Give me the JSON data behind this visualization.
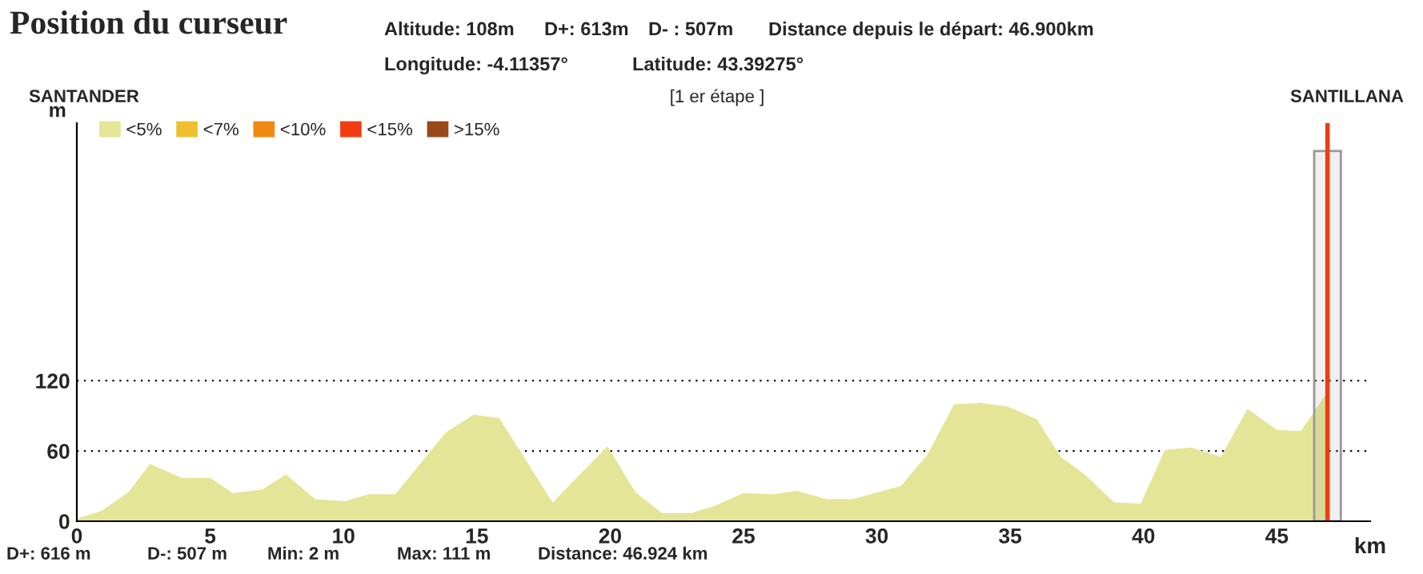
{
  "chart_data": {
    "type": "area",
    "title": "Position du curseur",
    "subtitle": "[1 er étape ]",
    "xlabel": "km",
    "ylabel": "m",
    "annotations": [
      "Altitude: 108m",
      "D+: 613m",
      "D- : 507m",
      "Distance depuis le départ: 46.900km",
      "Longitude: -4.11357°",
      "Latitude: 43.39275°",
      "SANTANDER",
      "SANTILLANA",
      "D+: 616 m",
      "D-: 507 m",
      "Min: 2 m",
      "Max: 111 m",
      "Distance: 46.924 km"
    ],
    "x": [
      0,
      0.94,
      1.94,
      2.74,
      3.94,
      5,
      5.84,
      6.94,
      7.84,
      8.94,
      10.04,
      10.94,
      11.94,
      13.84,
      14.88,
      15.84,
      17.84,
      19.9,
      20.94,
      21.94,
      23.04,
      23.9,
      25,
      26.1,
      27.0,
      28.1,
      29.1,
      30.9,
      31.9,
      32.9,
      33.9,
      34.9,
      36.0,
      36.9,
      37.8,
      38.9,
      39.9,
      40.8,
      41.8,
      42.9,
      43.9,
      45.0,
      45.9,
      46.8,
      46.924
    ],
    "series": [
      {
        "name": "<5%",
        "color": "#e5e597",
        "values": [
          2,
          9,
          25,
          49,
          37,
          37,
          24,
          27,
          40,
          19,
          17,
          23,
          23,
          76,
          91,
          88,
          16,
          64,
          25,
          7,
          7,
          13,
          24,
          23,
          26,
          19,
          19,
          30,
          57,
          100,
          101,
          98,
          87,
          55,
          40,
          16,
          15,
          61,
          63,
          55,
          96,
          78,
          77,
          107,
          108
        ]
      },
      {
        "name": "<7%",
        "color": "#f0c030",
        "values": [
          null,
          null,
          null,
          null,
          null,
          null,
          null,
          null,
          null,
          null,
          null,
          null,
          null,
          null,
          null,
          null,
          null,
          null,
          null,
          null,
          null,
          null,
          null,
          null,
          null,
          null,
          null,
          null,
          null,
          null,
          null,
          null,
          null,
          null,
          null,
          null,
          null,
          null,
          null,
          null,
          null,
          null,
          null,
          null,
          null
        ]
      },
      {
        "name": "<10%",
        "color": "#f08a10",
        "values": [
          null,
          null,
          null,
          null,
          null,
          null,
          null,
          null,
          null,
          null,
          null,
          null,
          null,
          null,
          null,
          null,
          null,
          null,
          null,
          null,
          null,
          null,
          null,
          null,
          null,
          null,
          null,
          null,
          null,
          null,
          null,
          null,
          null,
          null,
          null,
          null,
          null,
          null,
          null,
          null,
          null,
          null,
          null,
          null,
          null
        ]
      },
      {
        "name": "<15%",
        "color": "#f03c10",
        "values": [
          null,
          null,
          null,
          null,
          null,
          null,
          null,
          null,
          null,
          null,
          null,
          null,
          null,
          null,
          null,
          null,
          null,
          null,
          null,
          null,
          null,
          null,
          null,
          null,
          null,
          null,
          null,
          null,
          null,
          null,
          null,
          null,
          null,
          null,
          null,
          null,
          null,
          null,
          null,
          null,
          null,
          null,
          null,
          null,
          null
        ]
      },
      {
        "name": ">15%",
        "color": "#9a4a1a",
        "values": [
          null,
          null,
          null,
          null,
          null,
          null,
          null,
          null,
          null,
          null,
          null,
          null,
          null,
          null,
          null,
          null,
          null,
          null,
          null,
          null,
          null,
          null,
          null,
          null,
          null,
          null,
          null,
          null,
          null,
          null,
          null,
          null,
          null,
          null,
          null,
          null,
          null,
          null,
          null,
          null,
          null,
          null,
          null,
          null,
          null
        ]
      }
    ],
    "xlim": [
      0,
      48.5
    ],
    "xticks": [
      0,
      5,
      10,
      15,
      20,
      25,
      30,
      35,
      40,
      45
    ],
    "ylim": [
      0,
      340
    ],
    "yticks": [
      0,
      60,
      120
    ],
    "ref_lines": [
      {
        "axis": "x",
        "value": 46.9,
        "color": "#f03c10"
      }
    ],
    "bands": [
      {
        "axis": "x",
        "from": 46.4,
        "to": 47.4,
        "color": "#999999"
      }
    ],
    "grid": "y",
    "legend": "top left"
  }
}
